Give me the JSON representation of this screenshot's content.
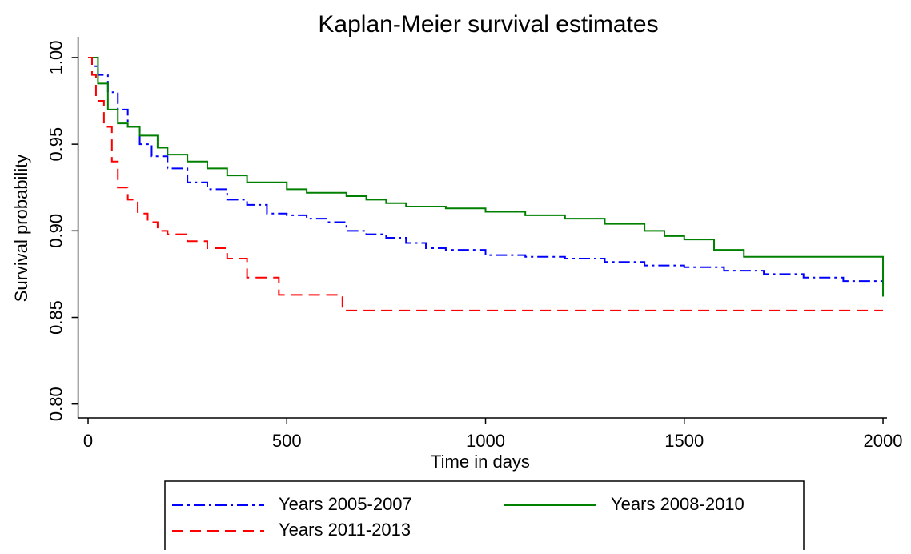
{
  "chart_data": {
    "type": "step",
    "title": "Kaplan-Meier survival estimates",
    "x_label": "Time in days",
    "y_label": "Survival probability",
    "xlim": [
      -25,
      2010
    ],
    "ylim": [
      0.792,
      1.012
    ],
    "xticks": [
      0,
      500,
      1000,
      1500,
      2000
    ],
    "yticks": [
      {
        "value": 0.8,
        "label": "0.80"
      },
      {
        "value": 0.85,
        "label": "0.85"
      },
      {
        "value": 0.9,
        "label": "0.90"
      },
      {
        "value": 0.95,
        "label": "0.95"
      },
      {
        "value": 1.0,
        "label": "1.00"
      }
    ],
    "series": [
      {
        "name": "Years 2005-2007",
        "color": "#0000ff",
        "dash": "dash-dot",
        "x": [
          0,
          10,
          25,
          50,
          75,
          100,
          130,
          160,
          200,
          250,
          300,
          350,
          400,
          450,
          500,
          550,
          600,
          650,
          700,
          750,
          800,
          850,
          900,
          1000,
          1100,
          1200,
          1300,
          1400,
          1500,
          1600,
          1700,
          1800,
          1900,
          2000
        ],
        "values": [
          1.0,
          0.995,
          0.99,
          0.98,
          0.97,
          0.96,
          0.95,
          0.943,
          0.936,
          0.928,
          0.924,
          0.918,
          0.915,
          0.91,
          0.909,
          0.907,
          0.905,
          0.9,
          0.898,
          0.896,
          0.893,
          0.89,
          0.889,
          0.886,
          0.885,
          0.884,
          0.882,
          0.88,
          0.879,
          0.877,
          0.875,
          0.873,
          0.871,
          0.869
        ]
      },
      {
        "name": "Years 2008-2010",
        "color": "#008000",
        "dash": "solid",
        "x": [
          0,
          25,
          50,
          75,
          100,
          130,
          175,
          200,
          250,
          300,
          350,
          400,
          500,
          550,
          650,
          700,
          750,
          800,
          900,
          1000,
          1100,
          1200,
          1300,
          1400,
          1450,
          1500,
          1575,
          1650,
          2000,
          2000
        ],
        "values": [
          1.0,
          0.985,
          0.97,
          0.962,
          0.96,
          0.955,
          0.948,
          0.944,
          0.94,
          0.936,
          0.932,
          0.928,
          0.924,
          0.922,
          0.92,
          0.918,
          0.916,
          0.914,
          0.913,
          0.911,
          0.909,
          0.907,
          0.904,
          0.9,
          0.897,
          0.895,
          0.889,
          0.885,
          0.885,
          0.862
        ]
      },
      {
        "name": "Years 2011-2013",
        "color": "#ff0000",
        "dash": "dashed",
        "x": [
          0,
          10,
          20,
          40,
          60,
          75,
          100,
          125,
          150,
          175,
          200,
          250,
          300,
          350,
          400,
          450,
          480,
          550,
          640,
          2000
        ],
        "values": [
          1.0,
          0.99,
          0.975,
          0.96,
          0.94,
          0.925,
          0.918,
          0.91,
          0.905,
          0.9,
          0.898,
          0.894,
          0.89,
          0.884,
          0.873,
          0.873,
          0.863,
          0.863,
          0.854,
          0.854
        ]
      }
    ]
  }
}
